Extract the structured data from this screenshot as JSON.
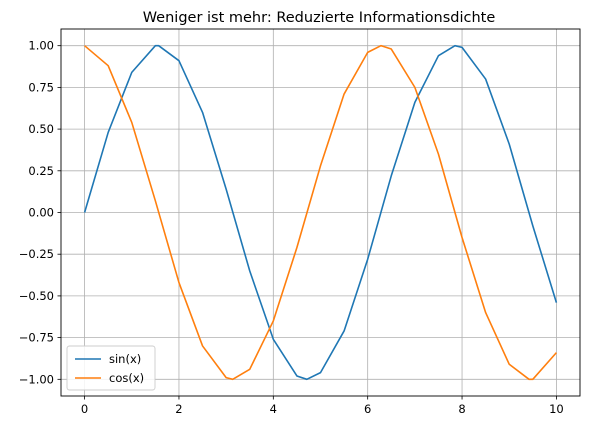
{
  "chart_data": {
    "type": "line",
    "title": "Weniger ist mehr: Reduzierte Informationsdichte",
    "xlabel": "",
    "ylabel": "",
    "xlim": [
      -0.5,
      10.5
    ],
    "ylim": [
      -1.1,
      1.1
    ],
    "x_ticks": [
      0,
      2,
      4,
      6,
      8,
      10
    ],
    "x_tick_labels": [
      "0",
      "2",
      "4",
      "6",
      "8",
      "10"
    ],
    "y_ticks": [
      1.0,
      0.75,
      0.5,
      0.25,
      0.0,
      -0.25,
      -0.5,
      -0.75,
      -1.0
    ],
    "y_tick_labels": [
      "1.00",
      "0.75",
      "0.50",
      "0.25",
      "0.00",
      "−0.25",
      "−0.50",
      "−0.75",
      "−1.00"
    ],
    "grid": true,
    "legend_position": "lower-left",
    "series": [
      {
        "name": "sin(x)",
        "color": "#1f77b4",
        "x": [
          0,
          0.5,
          1,
          1.5,
          1.57,
          2,
          2.5,
          3,
          3.5,
          4,
          4.5,
          4.71,
          5,
          5.5,
          6,
          6.5,
          7,
          7.5,
          7.85,
          8,
          8.5,
          9,
          9.5,
          10
        ],
        "y": [
          0.0,
          0.48,
          0.84,
          1.0,
          1.0,
          0.91,
          0.6,
          0.14,
          -0.35,
          -0.76,
          -0.98,
          -1.0,
          -0.96,
          -0.71,
          -0.28,
          0.22,
          0.66,
          0.94,
          1.0,
          0.99,
          0.8,
          0.41,
          -0.08,
          -0.54
        ]
      },
      {
        "name": "cos(x)",
        "color": "#ff7f0e",
        "x": [
          0,
          0.5,
          1,
          1.5,
          2,
          2.5,
          3,
          3.14,
          3.5,
          4,
          4.5,
          5,
          5.5,
          6,
          6.28,
          6.5,
          7,
          7.5,
          8,
          8.5,
          9,
          9.42,
          9.5,
          10
        ],
        "y": [
          1.0,
          0.88,
          0.54,
          0.07,
          -0.42,
          -0.8,
          -0.99,
          -1.0,
          -0.94,
          -0.65,
          -0.21,
          0.28,
          0.71,
          0.96,
          1.0,
          0.98,
          0.75,
          0.35,
          -0.15,
          -0.6,
          -0.91,
          -1.0,
          -1.0,
          -0.84
        ]
      }
    ]
  }
}
